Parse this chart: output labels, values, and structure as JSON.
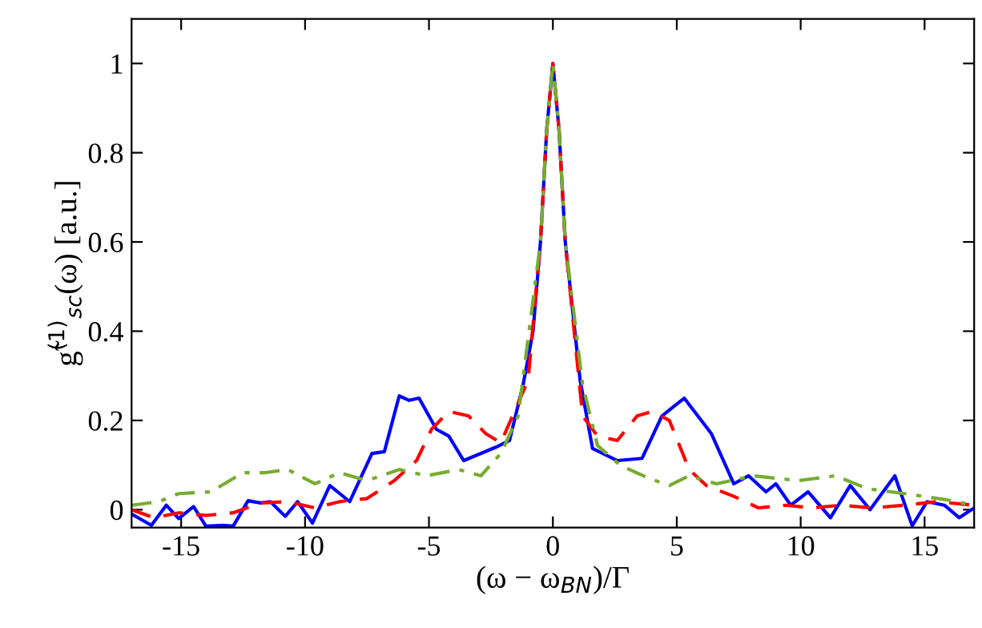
{
  "chart_data": {
    "type": "line",
    "xlabel": "(ω − ω$_{BN}$)/Γ",
    "ylabel": "g̃$^{(1)}$$_{sc}$(ω) [a.u.]",
    "xlim": [
      -17,
      17
    ],
    "ylim": [
      -0.04,
      1.1
    ],
    "xticks": [
      -15,
      -10,
      -5,
      0,
      5,
      10,
      15
    ],
    "yticks": [
      0,
      0.2,
      0.4,
      0.6,
      0.8,
      1
    ],
    "grid": false,
    "legend": false,
    "series": [
      {
        "color": "#0000ff",
        "line_style": "solid",
        "x": [
          -17,
          -16.2,
          -15.6,
          -15.1,
          -14.5,
          -14.0,
          -13.3,
          -12.9,
          -12.3,
          -11.8,
          -11.4,
          -10.8,
          -10.3,
          -9.7,
          -9.0,
          -8.2,
          -7.3,
          -6.8,
          -6.2,
          -5.8,
          -5.4,
          -4.7,
          -4.2,
          -3.6,
          -2.3,
          -1.75,
          -1.2,
          -0.8,
          -0.5,
          -0.25,
          0,
          0.25,
          0.5,
          1.1,
          1.6,
          2.6,
          3.6,
          4.4,
          5.3,
          6.4,
          7.3,
          7.9,
          8.6,
          9.0,
          9.6,
          10.3,
          11.2,
          12.0,
          12.8,
          13.8,
          14.5,
          15.1,
          15.8,
          16.4,
          17.0
        ],
        "values": [
          -0.01,
          -0.035,
          0.01,
          -0.02,
          0.007,
          -0.037,
          -0.035,
          -0.037,
          0.02,
          0.015,
          0.018,
          -0.015,
          0.018,
          -0.03,
          0.054,
          0.018,
          0.126,
          0.13,
          0.255,
          0.245,
          0.25,
          0.18,
          0.165,
          0.11,
          0.14,
          0.155,
          0.28,
          0.4,
          0.6,
          0.85,
          1.0,
          0.85,
          0.6,
          0.29,
          0.137,
          0.11,
          0.115,
          0.21,
          0.25,
          0.17,
          0.058,
          0.076,
          0.04,
          0.058,
          0.01,
          0.04,
          -0.018,
          0.054,
          0,
          0.076,
          -0.036,
          0.018,
          0.01,
          -0.018,
          0.004
        ]
      },
      {
        "color": "#ff0000",
        "line_style": "dashed",
        "x": [
          -17,
          -16.1,
          -15.1,
          -14,
          -12.9,
          -11.8,
          -10.7,
          -9.6,
          -8.6,
          -7.5,
          -6.4,
          -5.5,
          -4.9,
          -4.2,
          -3.4,
          -2.7,
          -2.1,
          -1.0,
          -0.5,
          -0.25,
          0,
          0.25,
          0.5,
          1.2,
          1.8,
          2.6,
          3.4,
          4.0,
          4.7,
          5.5,
          6.2,
          7.3,
          8.3,
          9.4,
          10.5,
          11.6,
          12.9,
          14.2,
          15.5,
          17
        ],
        "values": [
          0,
          -0.018,
          -0.007,
          -0.013,
          -0.007,
          0.015,
          0.018,
          0.004,
          0.018,
          0.025,
          0.065,
          0.11,
          0.18,
          0.22,
          0.21,
          0.17,
          0.15,
          0.29,
          0.6,
          0.85,
          1.0,
          0.85,
          0.6,
          0.21,
          0.165,
          0.155,
          0.21,
          0.22,
          0.2,
          0.09,
          0.054,
          0.03,
          0.004,
          0.01,
          0.004,
          0.01,
          0.004,
          0.01,
          0.018,
          0.01
        ]
      },
      {
        "color": "#77ac30",
        "line_style": "dashdot",
        "x": [
          -17,
          -15.9,
          -15.1,
          -13.8,
          -12.5,
          -11.6,
          -10.7,
          -9.6,
          -8.6,
          -7.5,
          -6.2,
          -5.1,
          -3.8,
          -2.9,
          -2.1,
          -1.4,
          -0.5,
          -0.25,
          0,
          0.25,
          0.5,
          1.2,
          1.8,
          2.7,
          3.8,
          4.7,
          5.5,
          6.6,
          8.1,
          9.9,
          11.4,
          12.7,
          14.2,
          15.9,
          17
        ],
        "values": [
          0.01,
          0.018,
          0.036,
          0.04,
          0.083,
          0.083,
          0.09,
          0.058,
          0.083,
          0.065,
          0.09,
          0.076,
          0.09,
          0.076,
          0.126,
          0.21,
          0.6,
          0.85,
          1.0,
          0.85,
          0.6,
          0.28,
          0.144,
          0.1,
          0.072,
          0.054,
          0.076,
          0.058,
          0.076,
          0.065,
          0.076,
          0.047,
          0.036,
          0.022,
          0.01
        ]
      }
    ]
  }
}
